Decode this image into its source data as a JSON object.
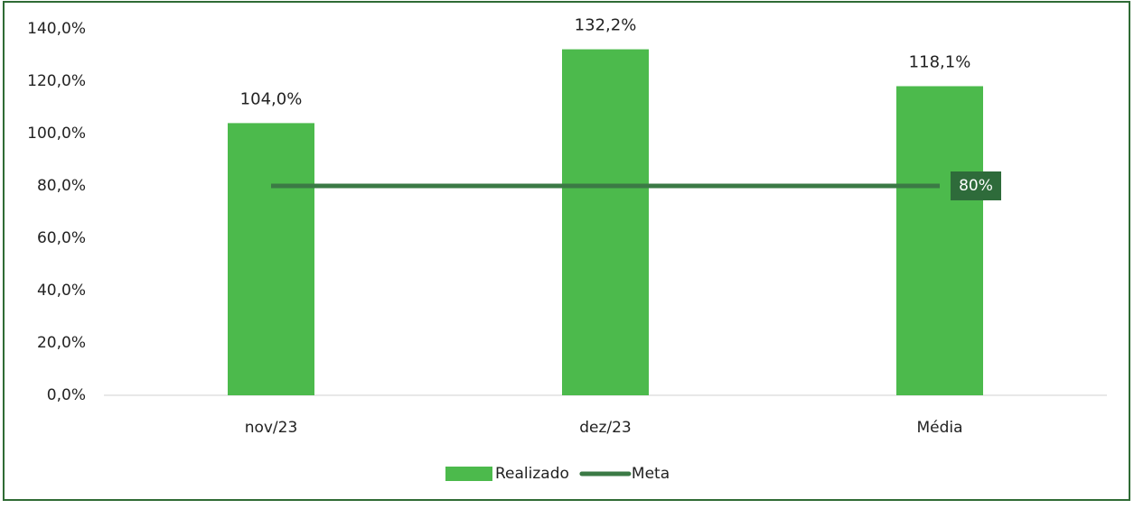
{
  "chart_data": {
    "type": "bar",
    "categories": [
      "nov/23",
      "dez/23",
      "Média"
    ],
    "series": [
      {
        "name": "Realizado",
        "type": "bar",
        "color": "#4cba4c",
        "values": [
          104.0,
          132.2,
          118.1
        ],
        "value_labels": [
          "104,0%",
          "132,2%",
          "118,1%"
        ]
      },
      {
        "name": "Meta",
        "type": "line",
        "color": "#3b7a45",
        "values": [
          80,
          80,
          80
        ],
        "value_labels": [
          null,
          null,
          "80%"
        ]
      }
    ],
    "ylim": [
      0,
      140
    ],
    "yticks": [
      {
        "value": 0,
        "label": "0,0%"
      },
      {
        "value": 20,
        "label": "20,0%"
      },
      {
        "value": 40,
        "label": "40,0%"
      },
      {
        "value": 60,
        "label": "60,0%"
      },
      {
        "value": 80,
        "label": "80,0%"
      },
      {
        "value": 100,
        "label": "100,0%"
      },
      {
        "value": 120,
        "label": "120,0%"
      },
      {
        "value": 140,
        "label": "140,0%"
      }
    ],
    "legend": "bottom"
  }
}
